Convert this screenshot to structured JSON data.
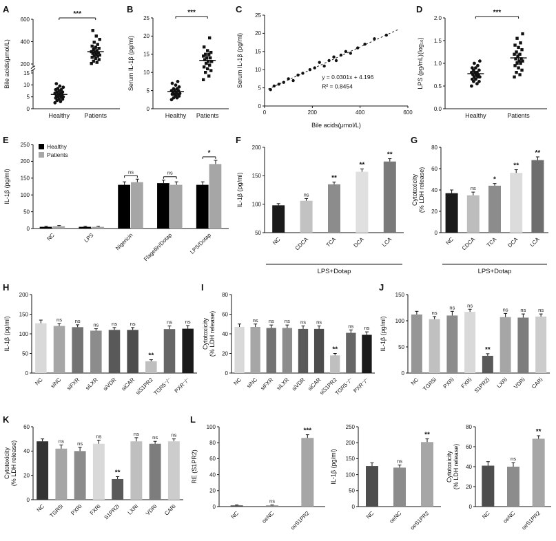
{
  "labels": {
    "A": "A",
    "B": "B",
    "C": "C",
    "D": "D",
    "E": "E",
    "F": "F",
    "G": "G",
    "H": "H",
    "I": "I",
    "J": "J",
    "K": "K",
    "L": "L"
  },
  "chart_data": [
    {
      "id": "A",
      "type": "dot",
      "ylabel": "Bile acids(μmol/L)",
      "broken_axis": true,
      "lower_range": [
        0,
        15
      ],
      "lower_ticks": [
        0,
        5,
        10,
        15
      ],
      "upper_range": [
        200,
        600
      ],
      "upper_ticks": [
        200,
        400,
        600
      ],
      "groups": [
        "Healthy",
        "Patients"
      ],
      "sig": "***",
      "points": {
        "Healthy": [
          2.5,
          3,
          3.5,
          4,
          4,
          4.5,
          5,
          5,
          5,
          5.5,
          5.5,
          6,
          6,
          6.5,
          6.5,
          7,
          7,
          7.5,
          8,
          8,
          8.5,
          9,
          9.5,
          10.5
        ],
        "Patients": [
          205,
          215,
          225,
          240,
          250,
          260,
          270,
          275,
          280,
          290,
          295,
          300,
          305,
          310,
          320,
          330,
          340,
          350,
          360,
          375,
          395,
          420,
          450,
          500
        ]
      },
      "mean": {
        "Healthy": 6,
        "Patients": 310
      },
      "mean_err": {
        "Healthy": 1.5,
        "Patients": 35
      }
    },
    {
      "id": "B",
      "type": "dot",
      "ylabel": "Serum IL-1β (pg/ml)",
      "ylim": [
        0,
        25
      ],
      "yticks": [
        0,
        5,
        10,
        15,
        20,
        25
      ],
      "groups": [
        "Healthy",
        "Patients"
      ],
      "sig": "***",
      "points": {
        "Healthy": [
          2.5,
          3,
          3,
          3.5,
          3.5,
          4,
          4,
          4,
          4.2,
          4.5,
          4.5,
          5,
          5,
          5,
          5.5,
          5.5,
          6,
          6.5,
          7,
          7.5
        ],
        "Patients": [
          8,
          9,
          10,
          10.5,
          11,
          11.5,
          12,
          12.5,
          13,
          13,
          13.5,
          14,
          14,
          14.5,
          15,
          15,
          15.5,
          16,
          17,
          19.5
        ]
      },
      "mean": {
        "Healthy": 4.7,
        "Patients": 13.3
      },
      "mean_err": {
        "Healthy": 0.6,
        "Patients": 1.1
      }
    },
    {
      "id": "C",
      "type": "scatter",
      "xlabel": "Bile acids(μmol/L)",
      "ylabel": "Serum IL-1β (pg/ml)",
      "xlim": [
        0,
        600
      ],
      "xticks": [
        0,
        200,
        400,
        600
      ],
      "ylim": [
        0,
        25
      ],
      "yticks": [
        0,
        5,
        10,
        15,
        20,
        25
      ],
      "equation": "y = 0.0301x + 4.196",
      "r2": "R² = 0.8454",
      "trend": {
        "slope": 0.0301,
        "intercept": 4.196
      },
      "points": [
        [
          25,
          4.5
        ],
        [
          40,
          5.5
        ],
        [
          60,
          6
        ],
        [
          80,
          6.5
        ],
        [
          100,
          7.5
        ],
        [
          120,
          7
        ],
        [
          140,
          8.5
        ],
        [
          160,
          9
        ],
        [
          190,
          10
        ],
        [
          210,
          10.5
        ],
        [
          230,
          12
        ],
        [
          250,
          11
        ],
        [
          270,
          12.5
        ],
        [
          290,
          13.5
        ],
        [
          300,
          12.5
        ],
        [
          320,
          14
        ],
        [
          340,
          15
        ],
        [
          360,
          14.5
        ],
        [
          390,
          16
        ],
        [
          420,
          17
        ],
        [
          460,
          18.5
        ],
        [
          510,
          19.5
        ]
      ]
    },
    {
      "id": "D",
      "type": "dot",
      "ylabel": "LPS (pg/mL)(log₁₀)",
      "ylim": [
        0,
        2
      ],
      "yticks": [
        0,
        0.5,
        1,
        1.5,
        2
      ],
      "tick_decimals": 1,
      "groups": [
        "Healthy",
        "Patients"
      ],
      "sig": "***",
      "points": {
        "Healthy": [
          0.5,
          0.55,
          0.6,
          0.6,
          0.65,
          0.65,
          0.7,
          0.7,
          0.7,
          0.75,
          0.75,
          0.75,
          0.8,
          0.8,
          0.8,
          0.85,
          0.85,
          0.9,
          0.9,
          0.95,
          1.0,
          1.05
        ],
        "Patients": [
          0.7,
          0.75,
          0.8,
          0.85,
          0.9,
          0.95,
          1.0,
          1.0,
          1.05,
          1.05,
          1.1,
          1.1,
          1.15,
          1.2,
          1.2,
          1.25,
          1.3,
          1.35,
          1.4,
          1.45,
          1.55,
          1.65
        ]
      },
      "mean": {
        "Healthy": 0.77,
        "Patients": 1.12
      },
      "mean_err": {
        "Healthy": 0.05,
        "Patients": 0.08
      }
    },
    {
      "id": "E",
      "type": "grouped_bar",
      "ylabel": "IL-1β (pg/ml)",
      "ylim": [
        0,
        250
      ],
      "yticks": [
        0,
        50,
        100,
        150,
        200,
        250
      ],
      "categories": [
        "NC",
        "LPS",
        "Nigericin",
        "Flagellin/Dotap",
        "LPS/Dotap"
      ],
      "series": [
        {
          "name": "Healthy",
          "color": "#000000",
          "values": [
            5,
            5,
            130,
            135,
            130
          ],
          "errors": [
            2,
            2,
            9,
            9,
            9
          ]
        },
        {
          "name": "Patients",
          "color": "#a6a6a6",
          "values": [
            7,
            5,
            138,
            130,
            192
          ],
          "errors": [
            2,
            2,
            9,
            9,
            11
          ]
        }
      ],
      "sig_labels": [
        {
          "cat": 2,
          "text": "ns"
        },
        {
          "cat": 3,
          "text": "ns"
        },
        {
          "cat": 4,
          "text": "*"
        }
      ]
    },
    {
      "id": "F",
      "type": "bar",
      "ylabel": "IL-1β (pg/ml)",
      "ylim": [
        50,
        200
      ],
      "yticks": [
        50,
        100,
        150,
        200
      ],
      "categories": [
        "NC",
        "CDCA",
        "TCA",
        "DCA",
        "LCA"
      ],
      "values": [
        98,
        106,
        135,
        157,
        175
      ],
      "errors": [
        3,
        4,
        4,
        5,
        5
      ],
      "colors": [
        "#1a1a1a",
        "#c2c2c2",
        "#8c8c8c",
        "#e0e0e0",
        "#7a7a7a"
      ],
      "sig": [
        "",
        "ns",
        "**",
        "**",
        "**"
      ],
      "xgroup": "LPS+Dotap"
    },
    {
      "id": "G",
      "type": "bar",
      "ylabel": [
        "Cytotoxicity",
        "(% LDH release)"
      ],
      "ylim": [
        0,
        80
      ],
      "yticks": [
        0,
        20,
        40,
        60,
        80
      ],
      "categories": [
        "NC",
        "CDCA",
        "TCA",
        "DCA",
        "LCA"
      ],
      "values": [
        37,
        35,
        44,
        56,
        68
      ],
      "errors": [
        3,
        3,
        2,
        3,
        3
      ],
      "colors": [
        "#1a1a1a",
        "#bdbdbd",
        "#8c8c8c",
        "#dcdcdc",
        "#6e6e6e"
      ],
      "sig": [
        "",
        "ns",
        "*",
        "**",
        "**"
      ],
      "xgroup": "LPS+Dotap"
    },
    {
      "id": "H",
      "type": "bar",
      "ylabel": "IL-1β (pg/ml)",
      "ylim": [
        0,
        200
      ],
      "yticks": [
        0,
        50,
        100,
        150,
        200
      ],
      "categories": [
        "NC",
        "siNC",
        "siFXR",
        "siLXR",
        "siVDR",
        "siCAR",
        "siS1PR2",
        "TGR5⁻/⁻",
        "PXR⁻/⁻"
      ],
      "values": [
        127,
        120,
        117,
        108,
        110,
        110,
        30,
        112,
        113
      ],
      "errors": [
        8,
        6,
        6,
        5,
        6,
        6,
        4,
        8,
        8
      ],
      "colors": [
        "#d9d9d9",
        "#a6a6a6",
        "#737373",
        "#8c8c8c",
        "#595959",
        "#4d4d4d",
        "#bfbfbf",
        "#666666",
        "#1a1a1a"
      ],
      "sig": [
        "",
        "ns",
        "ns",
        "ns",
        "ns",
        "ns",
        "**",
        "ns",
        "ns"
      ]
    },
    {
      "id": "I",
      "type": "bar",
      "ylabel": [
        "Cytotoxicity",
        "(% LDH release)"
      ],
      "ylim": [
        0,
        80
      ],
      "yticks": [
        0,
        20,
        40,
        60,
        80
      ],
      "categories": [
        "NC",
        "siNC",
        "siFXR",
        "siLXR",
        "siVDR",
        "siCAR",
        "siS1PR2",
        "TGR5⁻/⁻",
        "PXR⁻/⁻"
      ],
      "values": [
        47,
        47,
        46,
        46,
        45,
        45,
        18,
        41,
        39
      ],
      "errors": [
        3,
        3,
        3,
        3,
        3,
        3,
        2,
        3,
        3
      ],
      "colors": [
        "#d9d9d9",
        "#a6a6a6",
        "#737373",
        "#8c8c8c",
        "#595959",
        "#4d4d4d",
        "#bfbfbf",
        "#666666",
        "#1a1a1a"
      ],
      "sig": [
        "",
        "ns",
        "ns",
        "ns",
        "ns",
        "ns",
        "**",
        "ns",
        "ns"
      ]
    },
    {
      "id": "J",
      "type": "bar",
      "ylabel": "IL-1β (pg/ml)",
      "ylim": [
        0,
        150
      ],
      "yticks": [
        0,
        50,
        100,
        150
      ],
      "categories": [
        "NC",
        "TGR5i",
        "PXRi",
        "FXRi",
        "S1PR2i",
        "LXRi",
        "VDRi",
        "CARi"
      ],
      "values": [
        112,
        103,
        110,
        117,
        33,
        107,
        106,
        108
      ],
      "errors": [
        6,
        5,
        8,
        5,
        4,
        7,
        7,
        5
      ],
      "colors": [
        "#969696",
        "#c0c0c0",
        "#8c8c8c",
        "#d9d9d9",
        "#595959",
        "#a6a6a6",
        "#7d7d7d",
        "#cccccc"
      ],
      "sig": [
        "",
        "ns",
        "ns",
        "ns",
        "**",
        "ns",
        "ns",
        "ns"
      ]
    },
    {
      "id": "K",
      "type": "bar",
      "ylabel": [
        "Cytotoxicity",
        "(% LDH release)"
      ],
      "ylim": [
        0,
        60
      ],
      "yticks": [
        0,
        20,
        40,
        60
      ],
      "categories": [
        "NC",
        "TGR5i",
        "PXRi",
        "FXRi",
        "S1PR2i",
        "LXRi",
        "VDRi",
        "CARi"
      ],
      "values": [
        48,
        42,
        40,
        46,
        17,
        48,
        46,
        48
      ],
      "errors": [
        2,
        3,
        3,
        3,
        2,
        3,
        2,
        2
      ],
      "colors": [
        "#333333",
        "#a6a6a6",
        "#8c8c8c",
        "#d9d9d9",
        "#595959",
        "#bfbfbf",
        "#7d7d7d",
        "#cccccc"
      ],
      "sig": [
        "",
        "ns",
        "ns",
        "ns",
        "**",
        "ns",
        "ns",
        "ns"
      ]
    },
    {
      "id": "L1",
      "type": "bar",
      "ylabel": "RE (S1PR2)",
      "ylim": [
        0,
        100
      ],
      "yticks": [
        0,
        20,
        40,
        60,
        80,
        100
      ],
      "categories": [
        "NC",
        "oeNC",
        "oeS1PR2"
      ],
      "values": [
        1.5,
        1.5,
        86
      ],
      "errors": [
        0.5,
        0.5,
        4
      ],
      "colors": [
        "#4d4d4d",
        "#8c8c8c",
        "#a6a6a6"
      ],
      "sig": [
        "",
        "ns",
        "***"
      ]
    },
    {
      "id": "L2",
      "type": "bar",
      "ylabel": "IL-1β (pg/ml)",
      "ylim": [
        0,
        250
      ],
      "yticks": [
        0,
        50,
        100,
        150,
        200,
        250
      ],
      "categories": [
        "NC",
        "oeNC",
        "oeS1PR2"
      ],
      "values": [
        127,
        122,
        202
      ],
      "errors": [
        10,
        8,
        10
      ],
      "colors": [
        "#4d4d4d",
        "#8c8c8c",
        "#a6a6a6"
      ],
      "sig": [
        "",
        "ns",
        "**"
      ]
    },
    {
      "id": "L3",
      "type": "bar",
      "ylabel": [
        "Cytotoxicity",
        "(% LDH release)"
      ],
      "ylim": [
        0,
        80
      ],
      "yticks": [
        0,
        20,
        40,
        60,
        80
      ],
      "categories": [
        "NC",
        "oeNC",
        "oeS1PR2"
      ],
      "values": [
        41,
        40,
        68
      ],
      "errors": [
        4,
        4,
        3
      ],
      "colors": [
        "#4d4d4d",
        "#8c8c8c",
        "#a6a6a6"
      ],
      "sig": [
        "",
        "ns",
        "**"
      ]
    }
  ]
}
